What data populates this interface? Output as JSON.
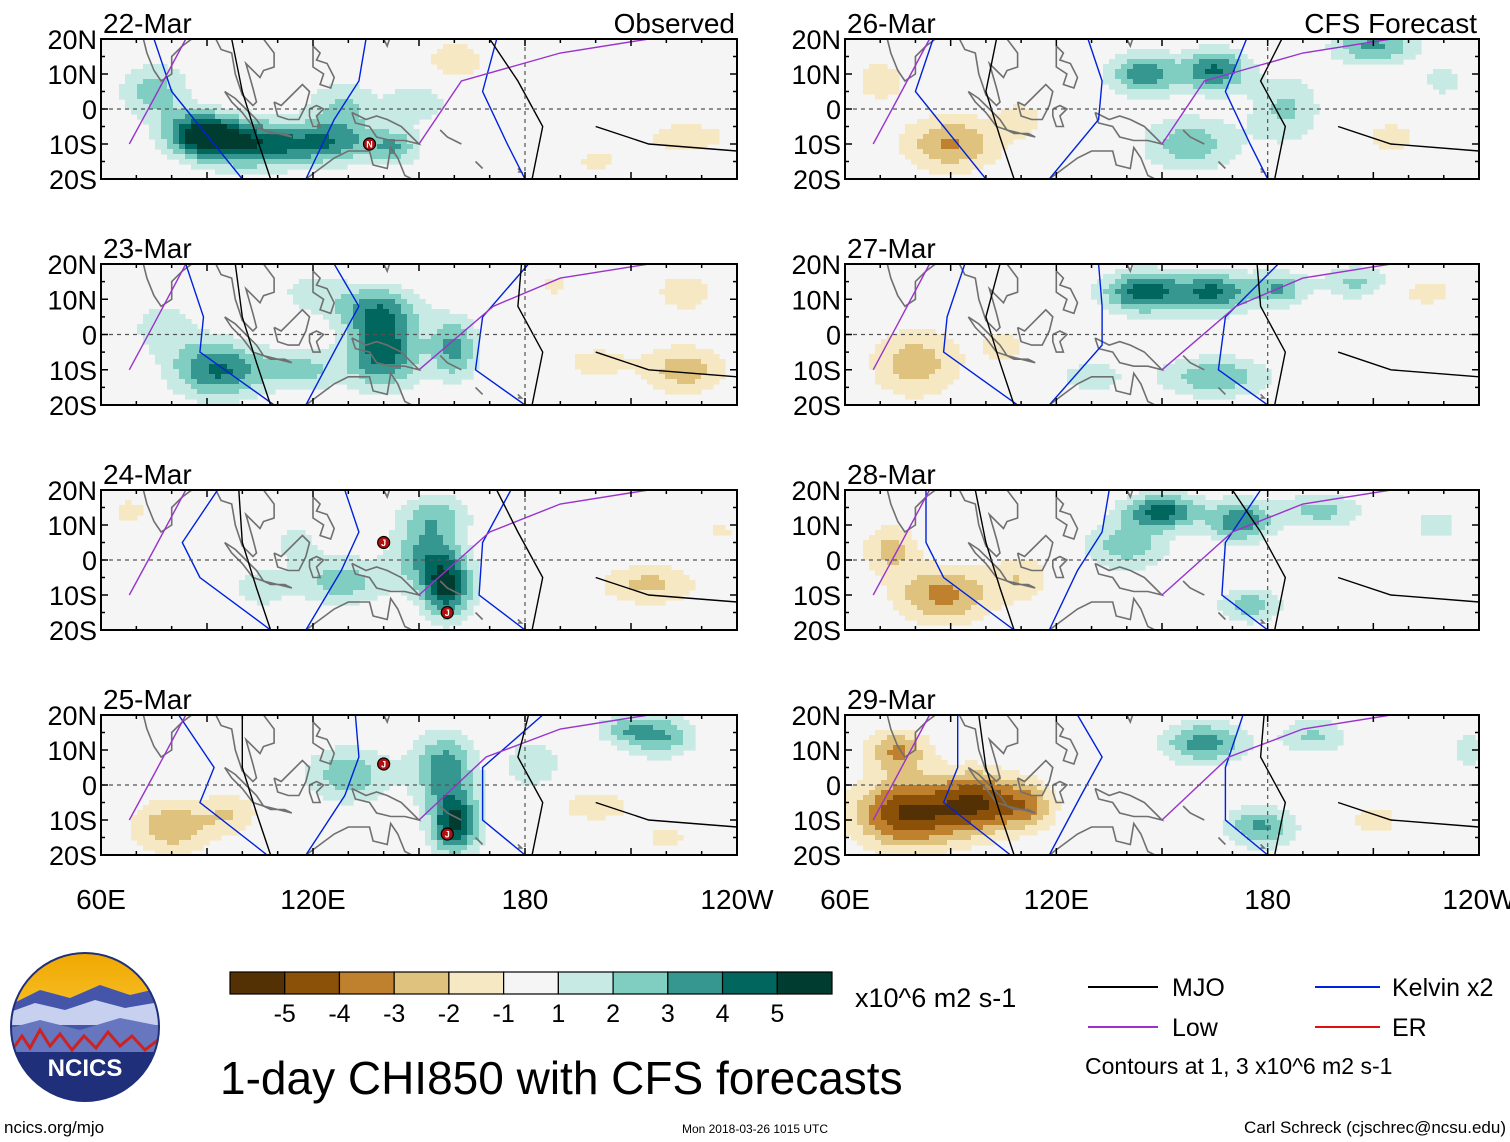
{
  "chart_data": {
    "type": "heatmap",
    "variable": "1-day CHI850",
    "title": "1-day CHI850 with CFS forecasts",
    "units": "x10^6 m2 s-1",
    "x_ticks": [
      "60E",
      "120E",
      "180",
      "120W"
    ],
    "x_tick_values": [
      60,
      120,
      180,
      240
    ],
    "xlim": [
      60,
      240
    ],
    "y_ticks": [
      "20N",
      "10N",
      "0",
      "10S",
      "20S"
    ],
    "y_tick_values": [
      20,
      10,
      0,
      -10,
      -20
    ],
    "ylim": [
      -20,
      20
    ],
    "columns": [
      {
        "label": "Observed",
        "panels": [
          {
            "date": "22-Mar",
            "cyclones": [
              {
                "letter": "N",
                "lon": 136,
                "lat": -10
              }
            ],
            "anomaly": [
              {
                "lon": 88,
                "lat": -7,
                "v": 4.8,
                "sx": 10,
                "sy": 6
              },
              {
                "lon": 100,
                "lat": -10,
                "v": 4.2,
                "sx": 14,
                "sy": 7
              },
              {
                "lon": 122,
                "lat": -10,
                "v": 3.6,
                "sx": 16,
                "sy": 6
              },
              {
                "lon": 128,
                "lat": 0,
                "v": 2.2,
                "sx": 10,
                "sy": 8
              },
              {
                "lon": 75,
                "lat": 5,
                "v": 2.5,
                "sx": 10,
                "sy": 8
              },
              {
                "lon": 143,
                "lat": -11,
                "v": 2.5,
                "sx": 7,
                "sy": 5
              },
              {
                "lon": 150,
                "lat": 2,
                "v": 1.6,
                "sx": 10,
                "sy": 7
              },
              {
                "lon": 160,
                "lat": 14,
                "v": -1.8,
                "sx": 9,
                "sy": 6
              },
              {
                "lon": 226,
                "lat": -8,
                "v": -1.6,
                "sx": 14,
                "sy": 5
              },
              {
                "lon": 200,
                "lat": -15,
                "v": -1.2,
                "sx": 10,
                "sy": 5
              }
            ]
          },
          {
            "date": "23-Mar",
            "cyclones": [],
            "anomaly": [
              {
                "lon": 93,
                "lat": -10,
                "v": 4.2,
                "sx": 13,
                "sy": 8
              },
              {
                "lon": 140,
                "lat": -5,
                "v": 4.6,
                "sx": 10,
                "sy": 10
              },
              {
                "lon": 138,
                "lat": 7,
                "v": 3.2,
                "sx": 12,
                "sy": 7
              },
              {
                "lon": 160,
                "lat": -4,
                "v": 3.3,
                "sx": 7,
                "sy": 9
              },
              {
                "lon": 117,
                "lat": -10,
                "v": 2.3,
                "sx": 12,
                "sy": 6
              },
              {
                "lon": 78,
                "lat": 2,
                "v": 1.6,
                "sx": 10,
                "sy": 8
              },
              {
                "lon": 120,
                "lat": 12,
                "v": 1.5,
                "sx": 10,
                "sy": 6
              },
              {
                "lon": 225,
                "lat": -10,
                "v": -2.6,
                "sx": 12,
                "sy": 7
              },
              {
                "lon": 200,
                "lat": -8,
                "v": -1.5,
                "sx": 10,
                "sy": 5
              },
              {
                "lon": 225,
                "lat": 12,
                "v": -1.5,
                "sx": 10,
                "sy": 7
              },
              {
                "lon": 188,
                "lat": 14,
                "v": -1.2,
                "sx": 6,
                "sy": 5
              }
            ]
          },
          {
            "date": "24-Mar",
            "cyclones": [
              {
                "letter": "J",
                "lon": 140,
                "lat": 5
              },
              {
                "letter": "J",
                "lon": 158,
                "lat": -15
              }
            ],
            "anomaly": [
              {
                "lon": 158,
                "lat": -8,
                "v": 4.8,
                "sx": 7,
                "sy": 9
              },
              {
                "lon": 152,
                "lat": 2,
                "v": 3.0,
                "sx": 10,
                "sy": 10
              },
              {
                "lon": 128,
                "lat": -6,
                "v": 2.6,
                "sx": 13,
                "sy": 7
              },
              {
                "lon": 155,
                "lat": 13,
                "v": 2.0,
                "sx": 10,
                "sy": 6
              },
              {
                "lon": 105,
                "lat": -8,
                "v": 1.6,
                "sx": 8,
                "sy": 6
              },
              {
                "lon": 115,
                "lat": 5,
                "v": 1.3,
                "sx": 8,
                "sy": 6
              },
              {
                "lon": 215,
                "lat": -7,
                "v": -2.3,
                "sx": 14,
                "sy": 6
              },
              {
                "lon": 68,
                "lat": 14,
                "v": -1.3,
                "sx": 7,
                "sy": 5
              },
              {
                "lon": 235,
                "lat": 8,
                "v": -1.1,
                "sx": 8,
                "sy": 5
              }
            ]
          },
          {
            "date": "25-Mar",
            "cyclones": [
              {
                "letter": "J",
                "lon": 140,
                "lat": 6
              },
              {
                "letter": "J",
                "lon": 158,
                "lat": -14
              }
            ],
            "anomaly": [
              {
                "lon": 160,
                "lat": -11,
                "v": 5.2,
                "sx": 7,
                "sy": 9
              },
              {
                "lon": 157,
                "lat": 5,
                "v": 3.6,
                "sx": 9,
                "sy": 10
              },
              {
                "lon": 130,
                "lat": 3,
                "v": 2.8,
                "sx": 12,
                "sy": 8
              },
              {
                "lon": 182,
                "lat": 6,
                "v": 2.0,
                "sx": 8,
                "sy": 7
              },
              {
                "lon": 218,
                "lat": 14,
                "v": 3.2,
                "sx": 10,
                "sy": 6
              },
              {
                "lon": 207,
                "lat": 16,
                "v": 2.0,
                "sx": 7,
                "sy": 4
              },
              {
                "lon": 80,
                "lat": -12,
                "v": -2.8,
                "sx": 12,
                "sy": 8
              },
              {
                "lon": 97,
                "lat": -8,
                "v": -1.8,
                "sx": 8,
                "sy": 6
              },
              {
                "lon": 200,
                "lat": -6,
                "v": -1.6,
                "sx": 12,
                "sy": 5
              },
              {
                "lon": 220,
                "lat": -15,
                "v": -1.2,
                "sx": 10,
                "sy": 5
              }
            ]
          }
        ]
      },
      {
        "label": "CFS Forecast",
        "panels": [
          {
            "date": "26-Mar",
            "cyclones": [],
            "anomaly": [
              {
                "lon": 145,
                "lat": 10,
                "v": 3.8,
                "sx": 10,
                "sy": 6
              },
              {
                "lon": 165,
                "lat": 11,
                "v": 4.2,
                "sx": 9,
                "sy": 6
              },
              {
                "lon": 210,
                "lat": 18,
                "v": 3.3,
                "sx": 12,
                "sy": 5
              },
              {
                "lon": 158,
                "lat": -10,
                "v": 2.6,
                "sx": 14,
                "sy": 8
              },
              {
                "lon": 185,
                "lat": 0,
                "v": 2.2,
                "sx": 10,
                "sy": 10
              },
              {
                "lon": 230,
                "lat": 8,
                "v": 1.3,
                "sx": 8,
                "sy": 6
              },
              {
                "lon": 90,
                "lat": -10,
                "v": -3.1,
                "sx": 14,
                "sy": 8
              },
              {
                "lon": 70,
                "lat": 8,
                "v": -1.6,
                "sx": 8,
                "sy": 7
              },
              {
                "lon": 110,
                "lat": -3,
                "v": -1.4,
                "sx": 8,
                "sy": 6
              },
              {
                "lon": 215,
                "lat": -8,
                "v": -1.5,
                "sx": 9,
                "sy": 5
              }
            ]
          },
          {
            "date": "27-Mar",
            "cyclones": [],
            "anomaly": [
              {
                "lon": 145,
                "lat": 12,
                "v": 4.6,
                "sx": 12,
                "sy": 6
              },
              {
                "lon": 165,
                "lat": 12,
                "v": 4.0,
                "sx": 10,
                "sy": 6
              },
              {
                "lon": 183,
                "lat": 13,
                "v": 3.0,
                "sx": 8,
                "sy": 5
              },
              {
                "lon": 165,
                "lat": -12,
                "v": 2.8,
                "sx": 16,
                "sy": 6
              },
              {
                "lon": 205,
                "lat": 15,
                "v": 2.2,
                "sx": 10,
                "sy": 5
              },
              {
                "lon": 130,
                "lat": -12,
                "v": 1.6,
                "sx": 10,
                "sy": 5
              },
              {
                "lon": 80,
                "lat": -8,
                "v": -2.6,
                "sx": 13,
                "sy": 10
              },
              {
                "lon": 105,
                "lat": -3,
                "v": -1.4,
                "sx": 8,
                "sy": 6
              },
              {
                "lon": 225,
                "lat": 12,
                "v": -1.4,
                "sx": 10,
                "sy": 5
              },
              {
                "lon": 228,
                "lat": -10,
                "v": -1.0,
                "sx": 8,
                "sy": 5
              }
            ]
          },
          {
            "date": "28-Mar",
            "cyclones": [],
            "anomaly": [
              {
                "lon": 150,
                "lat": 14,
                "v": 4.4,
                "sx": 11,
                "sy": 5
              },
              {
                "lon": 172,
                "lat": 11,
                "v": 3.8,
                "sx": 9,
                "sy": 6
              },
              {
                "lon": 140,
                "lat": 4,
                "v": 2.6,
                "sx": 12,
                "sy": 7
              },
              {
                "lon": 195,
                "lat": 14,
                "v": 2.4,
                "sx": 12,
                "sy": 5
              },
              {
                "lon": 175,
                "lat": -13,
                "v": 2.6,
                "sx": 9,
                "sy": 5
              },
              {
                "lon": 228,
                "lat": 10,
                "v": 1.4,
                "sx": 8,
                "sy": 6
              },
              {
                "lon": 88,
                "lat": -10,
                "v": -3.4,
                "sx": 14,
                "sy": 8
              },
              {
                "lon": 73,
                "lat": 3,
                "v": -2.4,
                "sx": 8,
                "sy": 7
              },
              {
                "lon": 110,
                "lat": -5,
                "v": -1.8,
                "sx": 9,
                "sy": 7
              }
            ]
          },
          {
            "date": "29-Mar",
            "cyclones": [],
            "anomaly": [
              {
                "lon": 78,
                "lat": -8,
                "v": -5.2,
                "sx": 15,
                "sy": 10
              },
              {
                "lon": 98,
                "lat": -5,
                "v": -4.4,
                "sx": 11,
                "sy": 9
              },
              {
                "lon": 112,
                "lat": -6,
                "v": -3.0,
                "sx": 8,
                "sy": 7
              },
              {
                "lon": 75,
                "lat": 10,
                "v": -3.0,
                "sx": 9,
                "sy": 6
              },
              {
                "lon": 162,
                "lat": 12,
                "v": 3.6,
                "sx": 12,
                "sy": 6
              },
              {
                "lon": 178,
                "lat": -12,
                "v": 3.2,
                "sx": 10,
                "sy": 6
              },
              {
                "lon": 193,
                "lat": 14,
                "v": 2.2,
                "sx": 10,
                "sy": 5
              },
              {
                "lon": 237,
                "lat": 10,
                "v": 1.5,
                "sx": 6,
                "sy": 6
              },
              {
                "lon": 210,
                "lat": -10,
                "v": -1.6,
                "sx": 8,
                "sy": 5
              }
            ]
          }
        ]
      }
    ],
    "colorbar": {
      "boundaries": [
        -6,
        -5,
        -4,
        -3,
        -2,
        -1,
        1,
        2,
        3,
        4,
        5,
        6
      ],
      "labels": [
        "-5",
        "-4",
        "-3",
        "-2",
        "-1",
        "1",
        "2",
        "3",
        "4",
        "5"
      ],
      "colors": [
        "#543005",
        "#8c5109",
        "#bf812d",
        "#dfc27d",
        "#f6e8c3",
        "#f5f5f5",
        "#c7eae5",
        "#80cdc1",
        "#35978f",
        "#01665e",
        "#003c30"
      ]
    },
    "legend": {
      "entries": [
        {
          "label": "MJO",
          "color": "#000000"
        },
        {
          "label": "Low",
          "color": "#9933cc"
        },
        {
          "label": "Kelvin x2",
          "color": "#0022dd"
        },
        {
          "label": "ER",
          "color": "#dd1111"
        }
      ],
      "note": "Contours at 1, 3 x10^6 m2 s-1"
    }
  },
  "logo": {
    "text": "NCICS"
  },
  "footer": {
    "left": "ncics.org/mjo",
    "center": "Mon 2018-03-26 1015 UTC",
    "right": "Carl Schreck (cjschrec@ncsu.edu)"
  },
  "colors": {
    "mjo": "#000000",
    "low": "#9933cc",
    "kelvin": "#0022dd",
    "er": "#dd1111",
    "coast": "#707070"
  }
}
